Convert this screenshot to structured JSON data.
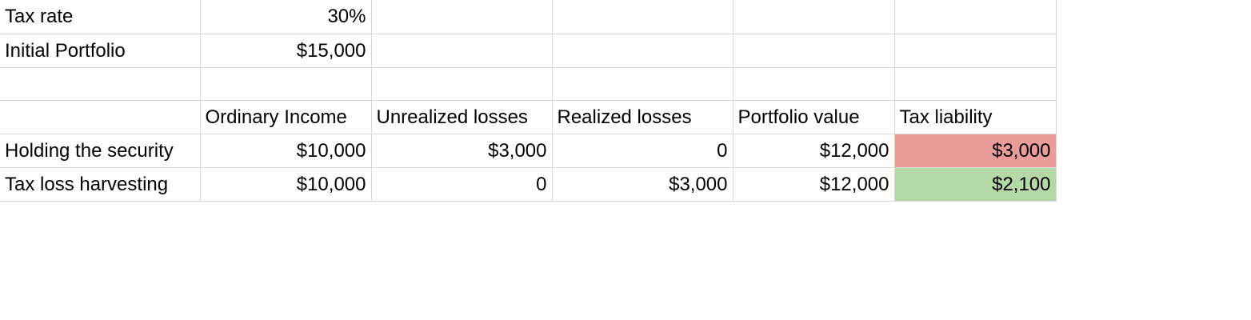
{
  "colors": {
    "high_tax": "#e99c9a",
    "low_tax": "#b5d8a7",
    "gridline": "#d9d9d9"
  },
  "params": {
    "tax_rate_label": "Tax rate",
    "tax_rate_value": "30%",
    "initial_portfolio_label": "Initial Portfolio",
    "initial_portfolio_value": "$15,000"
  },
  "headers": [
    "Ordinary Income",
    "Unrealized losses",
    "Realized losses",
    "Portfolio value",
    "Tax liability"
  ],
  "rows": [
    {
      "label": "Holding the security",
      "cells": [
        "$10,000",
        "$3,000",
        "0",
        "$12,000",
        "$3,000"
      ]
    },
    {
      "label": "Tax loss harvesting",
      "cells": [
        "$10,000",
        "0",
        "$3,000",
        "$12,000",
        "$2,100"
      ]
    }
  ]
}
